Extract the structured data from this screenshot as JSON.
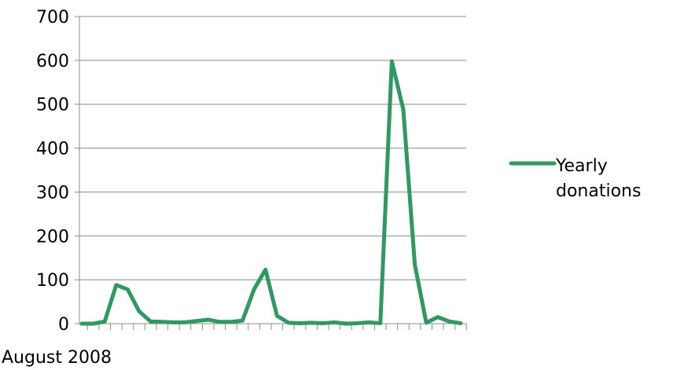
{
  "chart_data": {
    "type": "line",
    "title": "",
    "xlabel": "",
    "ylabel": "",
    "ylim": [
      0,
      700
    ],
    "y_ticks": [
      "0",
      "100",
      "200",
      "300",
      "400",
      "500",
      "600",
      "700"
    ],
    "x_first_label": "August 2008",
    "grid": "horizontal",
    "legend_position": "right",
    "series": [
      {
        "name": "Yearly donations",
        "color": "#2e9960",
        "values": [
          0,
          0,
          5,
          88,
          78,
          28,
          5,
          4,
          3,
          3,
          6,
          9,
          4,
          4,
          7,
          78,
          123,
          18,
          2,
          1,
          2,
          1,
          3,
          0,
          1,
          3,
          1,
          598,
          488,
          135,
          2,
          15,
          5,
          1
        ]
      }
    ]
  }
}
